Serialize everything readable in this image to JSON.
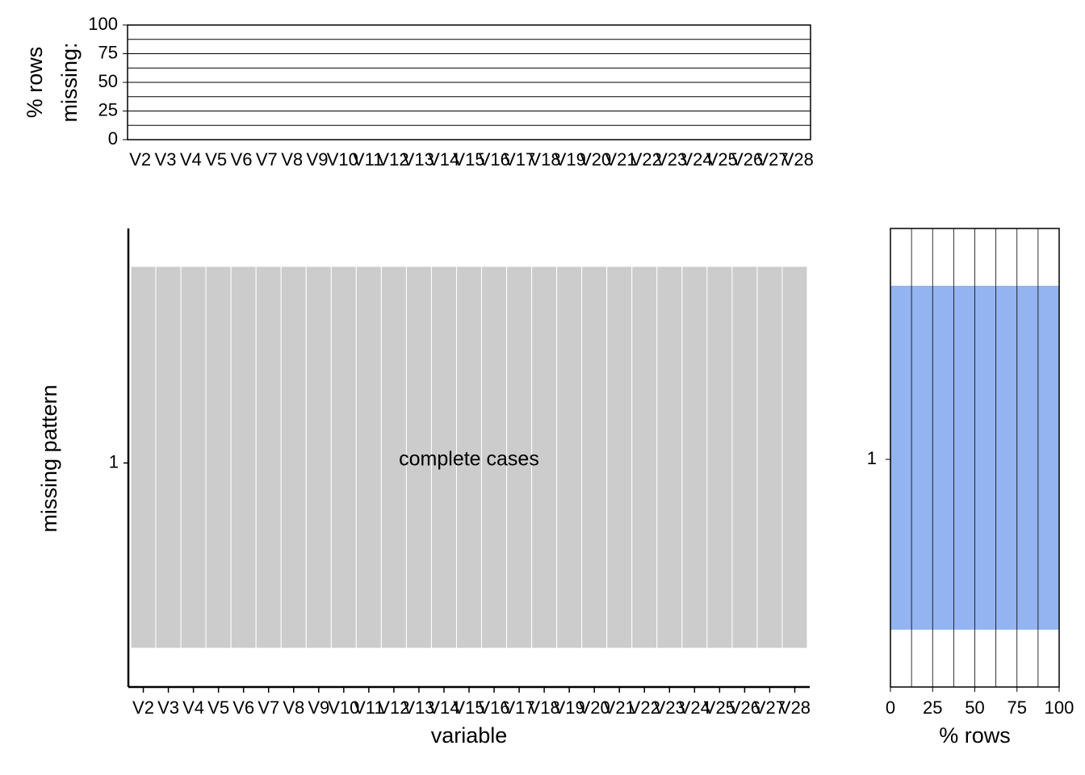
{
  "chart_data": [
    {
      "type": "bar",
      "ylabel": [
        "% rows",
        "missing:"
      ],
      "categories": [
        "V2",
        "V3",
        "V4",
        "V5",
        "V6",
        "V7",
        "V8",
        "V9",
        "V10",
        "V11",
        "V12",
        "V13",
        "V14",
        "V15",
        "V16",
        "V17",
        "V18",
        "V19",
        "V20",
        "V21",
        "V22",
        "V23",
        "V24",
        "V25",
        "V26",
        "V27",
        "V28"
      ],
      "values": [
        0,
        0,
        0,
        0,
        0,
        0,
        0,
        0,
        0,
        0,
        0,
        0,
        0,
        0,
        0,
        0,
        0,
        0,
        0,
        0,
        0,
        0,
        0,
        0,
        0,
        0,
        0
      ],
      "ylim": [
        0,
        100
      ],
      "yticks": [
        0,
        25,
        50,
        75,
        100
      ],
      "minor_yticks": [
        12.5,
        37.5,
        62.5,
        87.5
      ],
      "grid": true,
      "color": "#000000"
    },
    {
      "type": "tile",
      "xlabel": "variable",
      "ylabel": "missing pattern",
      "annotation": "complete cases",
      "categories": [
        "V2",
        "V3",
        "V4",
        "V5",
        "V6",
        "V7",
        "V8",
        "V9",
        "V10",
        "V11",
        "V12",
        "V13",
        "V14",
        "V15",
        "V16",
        "V17",
        "V18",
        "V19",
        "V20",
        "V21",
        "V22",
        "V23",
        "V24",
        "V25",
        "V26",
        "V27",
        "V28"
      ],
      "rows": [
        "1"
      ],
      "values": [
        [
          0,
          0,
          0,
          0,
          0,
          0,
          0,
          0,
          0,
          0,
          0,
          0,
          0,
          0,
          0,
          0,
          0,
          0,
          0,
          0,
          0,
          0,
          0,
          0,
          0,
          0,
          0
        ]
      ],
      "color": "#cccccc"
    },
    {
      "type": "barh",
      "xlabel": "% rows",
      "categories": [
        "1"
      ],
      "values": [
        100
      ],
      "xlim": [
        0,
        100
      ],
      "xticks": [
        0,
        25,
        50,
        75,
        100
      ],
      "minor_xticks": [
        12.5,
        37.5,
        62.5,
        87.5
      ],
      "grid": true,
      "color": "#93b4f0"
    }
  ]
}
